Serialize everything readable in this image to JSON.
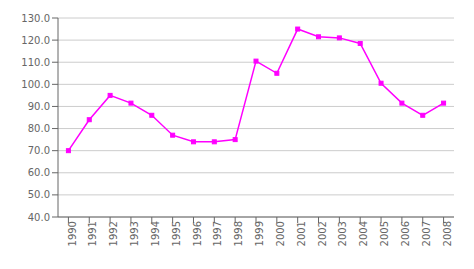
{
  "chart_data": {
    "type": "line",
    "x": [
      1990,
      1991,
      1992,
      1993,
      1994,
      1995,
      1996,
      1997,
      1998,
      1999,
      2000,
      2001,
      2002,
      2003,
      2004,
      2005,
      2006,
      2007,
      2008
    ],
    "values": [
      70.0,
      84.0,
      95.0,
      91.5,
      86.0,
      77.0,
      74.0,
      74.0,
      75.0,
      110.5,
      105.0,
      125.0,
      121.5,
      121.0,
      118.5,
      100.5,
      91.5,
      86.0,
      91.5
    ],
    "color": "#FF00FF",
    "marker": "square",
    "xlim": [
      1989.5,
      2008.5
    ],
    "xticks": [
      1990,
      1991,
      1992,
      1993,
      1994,
      1995,
      1996,
      1997,
      1998,
      1999,
      2000,
      2001,
      2002,
      2003,
      2004,
      2005,
      2006,
      2007,
      2008
    ],
    "ylim": [
      40.0,
      130.0
    ],
    "yticks": [
      {
        "value": 40,
        "label": "40.0"
      },
      {
        "value": 50,
        "label": "50.0"
      },
      {
        "value": 60,
        "label": "60.0"
      },
      {
        "value": 70,
        "label": "70.0"
      },
      {
        "value": 80,
        "label": "80.0"
      },
      {
        "value": 90,
        "label": "90.0"
      },
      {
        "value": 100,
        "label": "100.0"
      },
      {
        "value": 110,
        "label": "110.0"
      },
      {
        "value": 120,
        "label": "120.0"
      },
      {
        "value": 130,
        "label": "130.0"
      }
    ],
    "grid": true
  }
}
